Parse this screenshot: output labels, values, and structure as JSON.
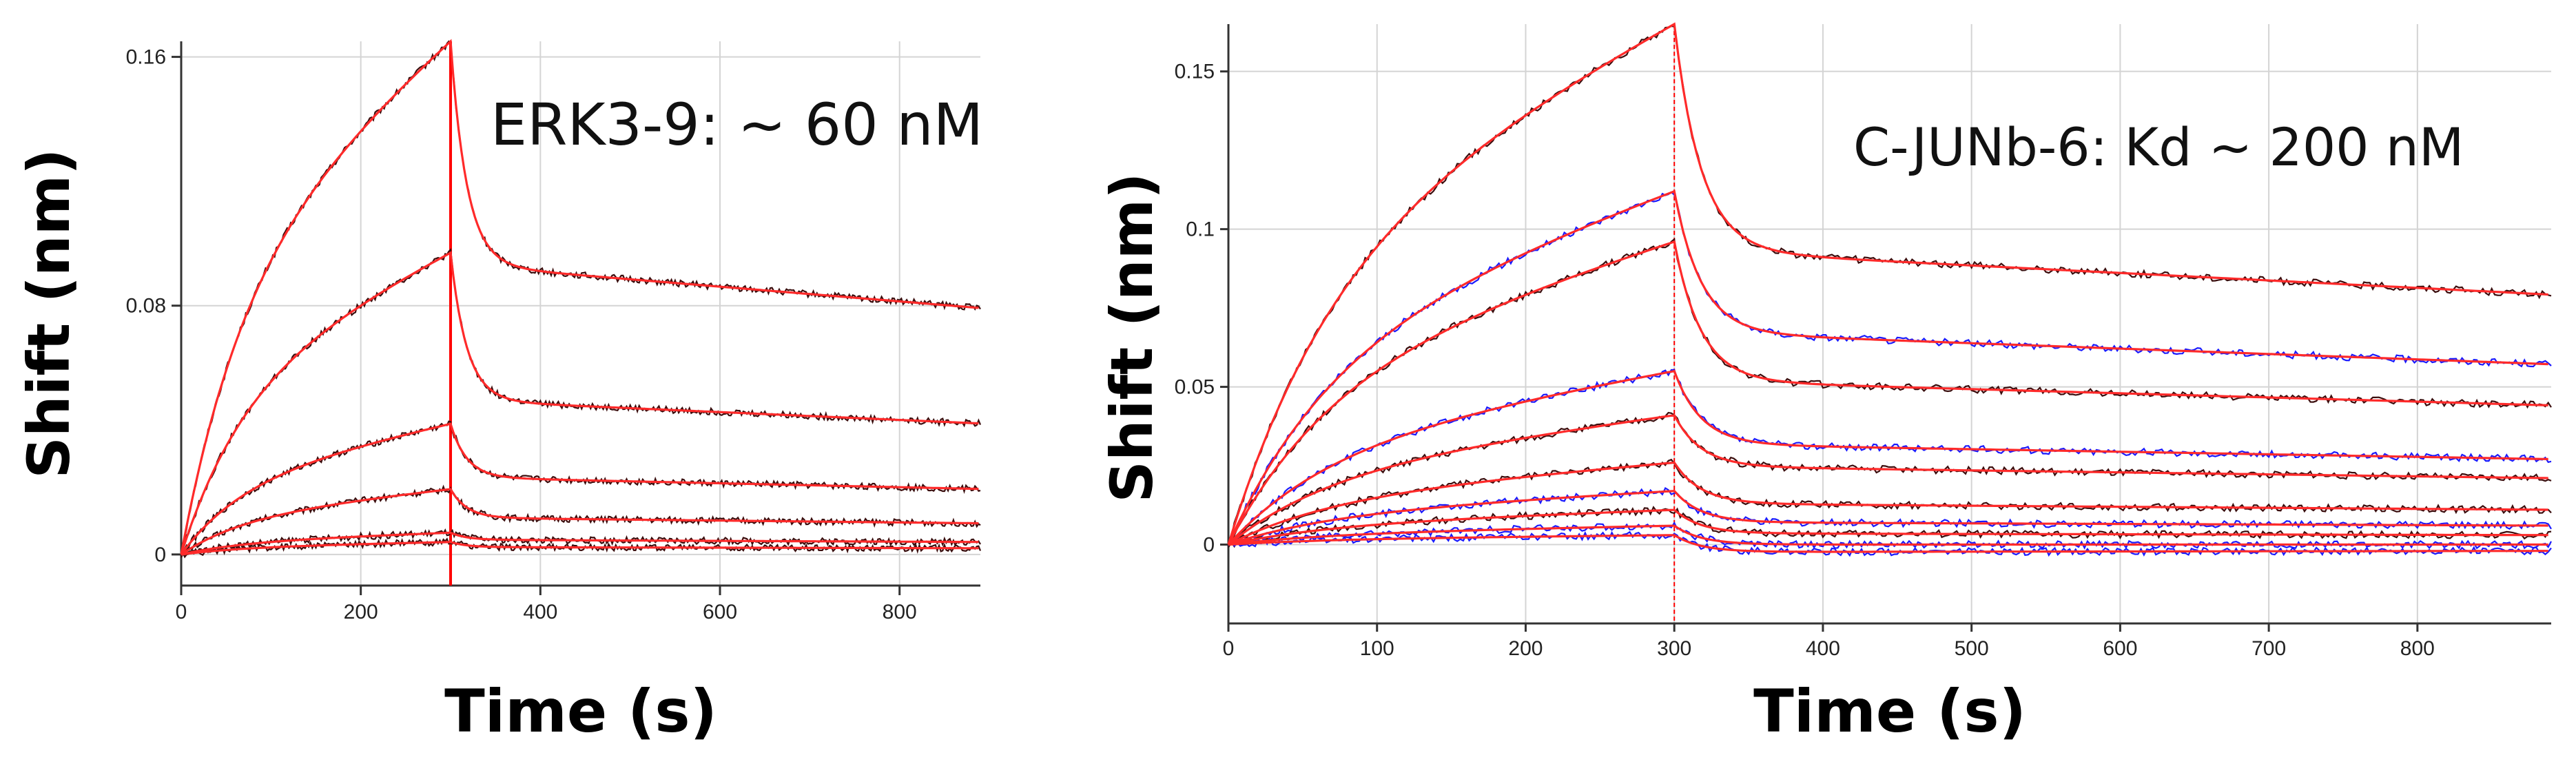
{
  "chart_data": [
    {
      "type": "line",
      "title": "",
      "annotation": "ERK3-9: ~ 60 nM",
      "xlabel": "Time (s)",
      "ylabel": "Shift (nm)",
      "xlim": [
        0,
        890
      ],
      "ylim": [
        -0.01,
        0.165
      ],
      "xticks": [
        0,
        200,
        400,
        600,
        800
      ],
      "xtick_labels": [
        "0",
        "200",
        "400",
        "600",
        "800"
      ],
      "yticks": [
        0,
        0.08,
        0.16
      ],
      "ytick_labels": [
        "0",
        "0.08",
        "0.16"
      ],
      "grid": true,
      "dissociation_start": 300,
      "colors": {
        "data": "#3a0d0d",
        "fit": "#ff2a2a",
        "marker": "#ff0000"
      },
      "series": [
        {
          "peak": 0.165,
          "end": 0.079,
          "data_color": "data"
        },
        {
          "peak": 0.097,
          "end": 0.042,
          "data_color": "data"
        },
        {
          "peak": 0.042,
          "end": 0.021,
          "data_color": "data"
        },
        {
          "peak": 0.021,
          "end": 0.01,
          "data_color": "data"
        },
        {
          "peak": 0.007,
          "end": 0.004,
          "data_color": "data"
        },
        {
          "peak": 0.004,
          "end": 0.002,
          "data_color": "data"
        }
      ]
    },
    {
      "type": "line",
      "title": "",
      "annotation": "C-JUNb-6: Kd ~ 200 nM",
      "xlabel": "Time (s)",
      "ylabel": "Shift (nm)",
      "xlim": [
        0,
        890
      ],
      "ylim": [
        -0.025,
        0.165
      ],
      "xticks": [
        0,
        100,
        200,
        300,
        400,
        500,
        600,
        700,
        800
      ],
      "xtick_labels": [
        "0",
        "100",
        "200",
        "300",
        "400",
        "500",
        "600",
        "700",
        "800"
      ],
      "yticks": [
        0,
        0.05,
        0.1,
        0.15
      ],
      "ytick_labels": [
        "0",
        "0.05",
        "0.1",
        "0.15"
      ],
      "grid": true,
      "dissociation_start": 300,
      "colors": {
        "data": "#3a0d0d",
        "data_blue": "#1a1aff",
        "fit": "#ff2a2a",
        "marker": "#ff0000"
      },
      "series": [
        {
          "peak": 0.165,
          "end": 0.079,
          "data_color": "data"
        },
        {
          "peak": 0.112,
          "end": 0.057,
          "data_color": "data_blue"
        },
        {
          "peak": 0.096,
          "end": 0.044,
          "data_color": "data"
        },
        {
          "peak": 0.055,
          "end": 0.027,
          "data_color": "data_blue"
        },
        {
          "peak": 0.041,
          "end": 0.021,
          "data_color": "data"
        },
        {
          "peak": 0.026,
          "end": 0.011,
          "data_color": "data"
        },
        {
          "peak": 0.017,
          "end": 0.006,
          "data_color": "data_blue"
        },
        {
          "peak": 0.011,
          "end": 0.003,
          "data_color": "data"
        },
        {
          "peak": 0.006,
          "end": 0.0,
          "data_color": "data_blue"
        },
        {
          "peak": 0.003,
          "end": -0.002,
          "data_color": "data_blue"
        }
      ]
    }
  ]
}
